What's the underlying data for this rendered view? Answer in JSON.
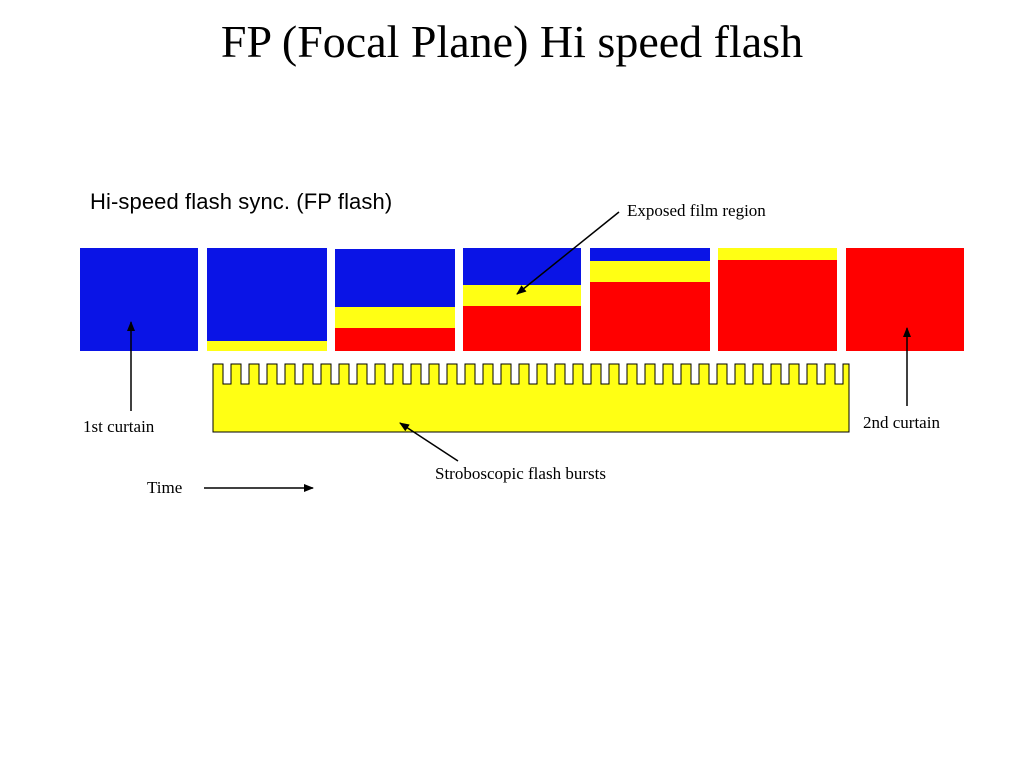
{
  "slide": {
    "title": "FP (Focal Plane) Hi speed flash"
  },
  "figure": {
    "title": "Hi-speed flash sync. (FP flash)",
    "labels": {
      "exposed_film_region": "Exposed film region",
      "first_curtain": "1st curtain",
      "second_curtain": "2nd curtain",
      "stroboscopic_flash_bursts": "Stroboscopic flash bursts",
      "time": "Time"
    },
    "colors": {
      "first_curtain": "#0a14e6",
      "exposed_region": "#ffff14",
      "second_curtain": "#ff0000",
      "flash_bursts": "#ffff14",
      "outline": "#000000"
    },
    "frames": [
      {
        "state": "1st curtain closed"
      },
      {
        "state": "exposure starting"
      },
      {
        "state": "slit moving"
      },
      {
        "state": "slit moving"
      },
      {
        "state": "slit moving"
      },
      {
        "state": "exposure ending"
      },
      {
        "state": "2nd curtain closed"
      }
    ],
    "flash_burst_count": 21
  }
}
